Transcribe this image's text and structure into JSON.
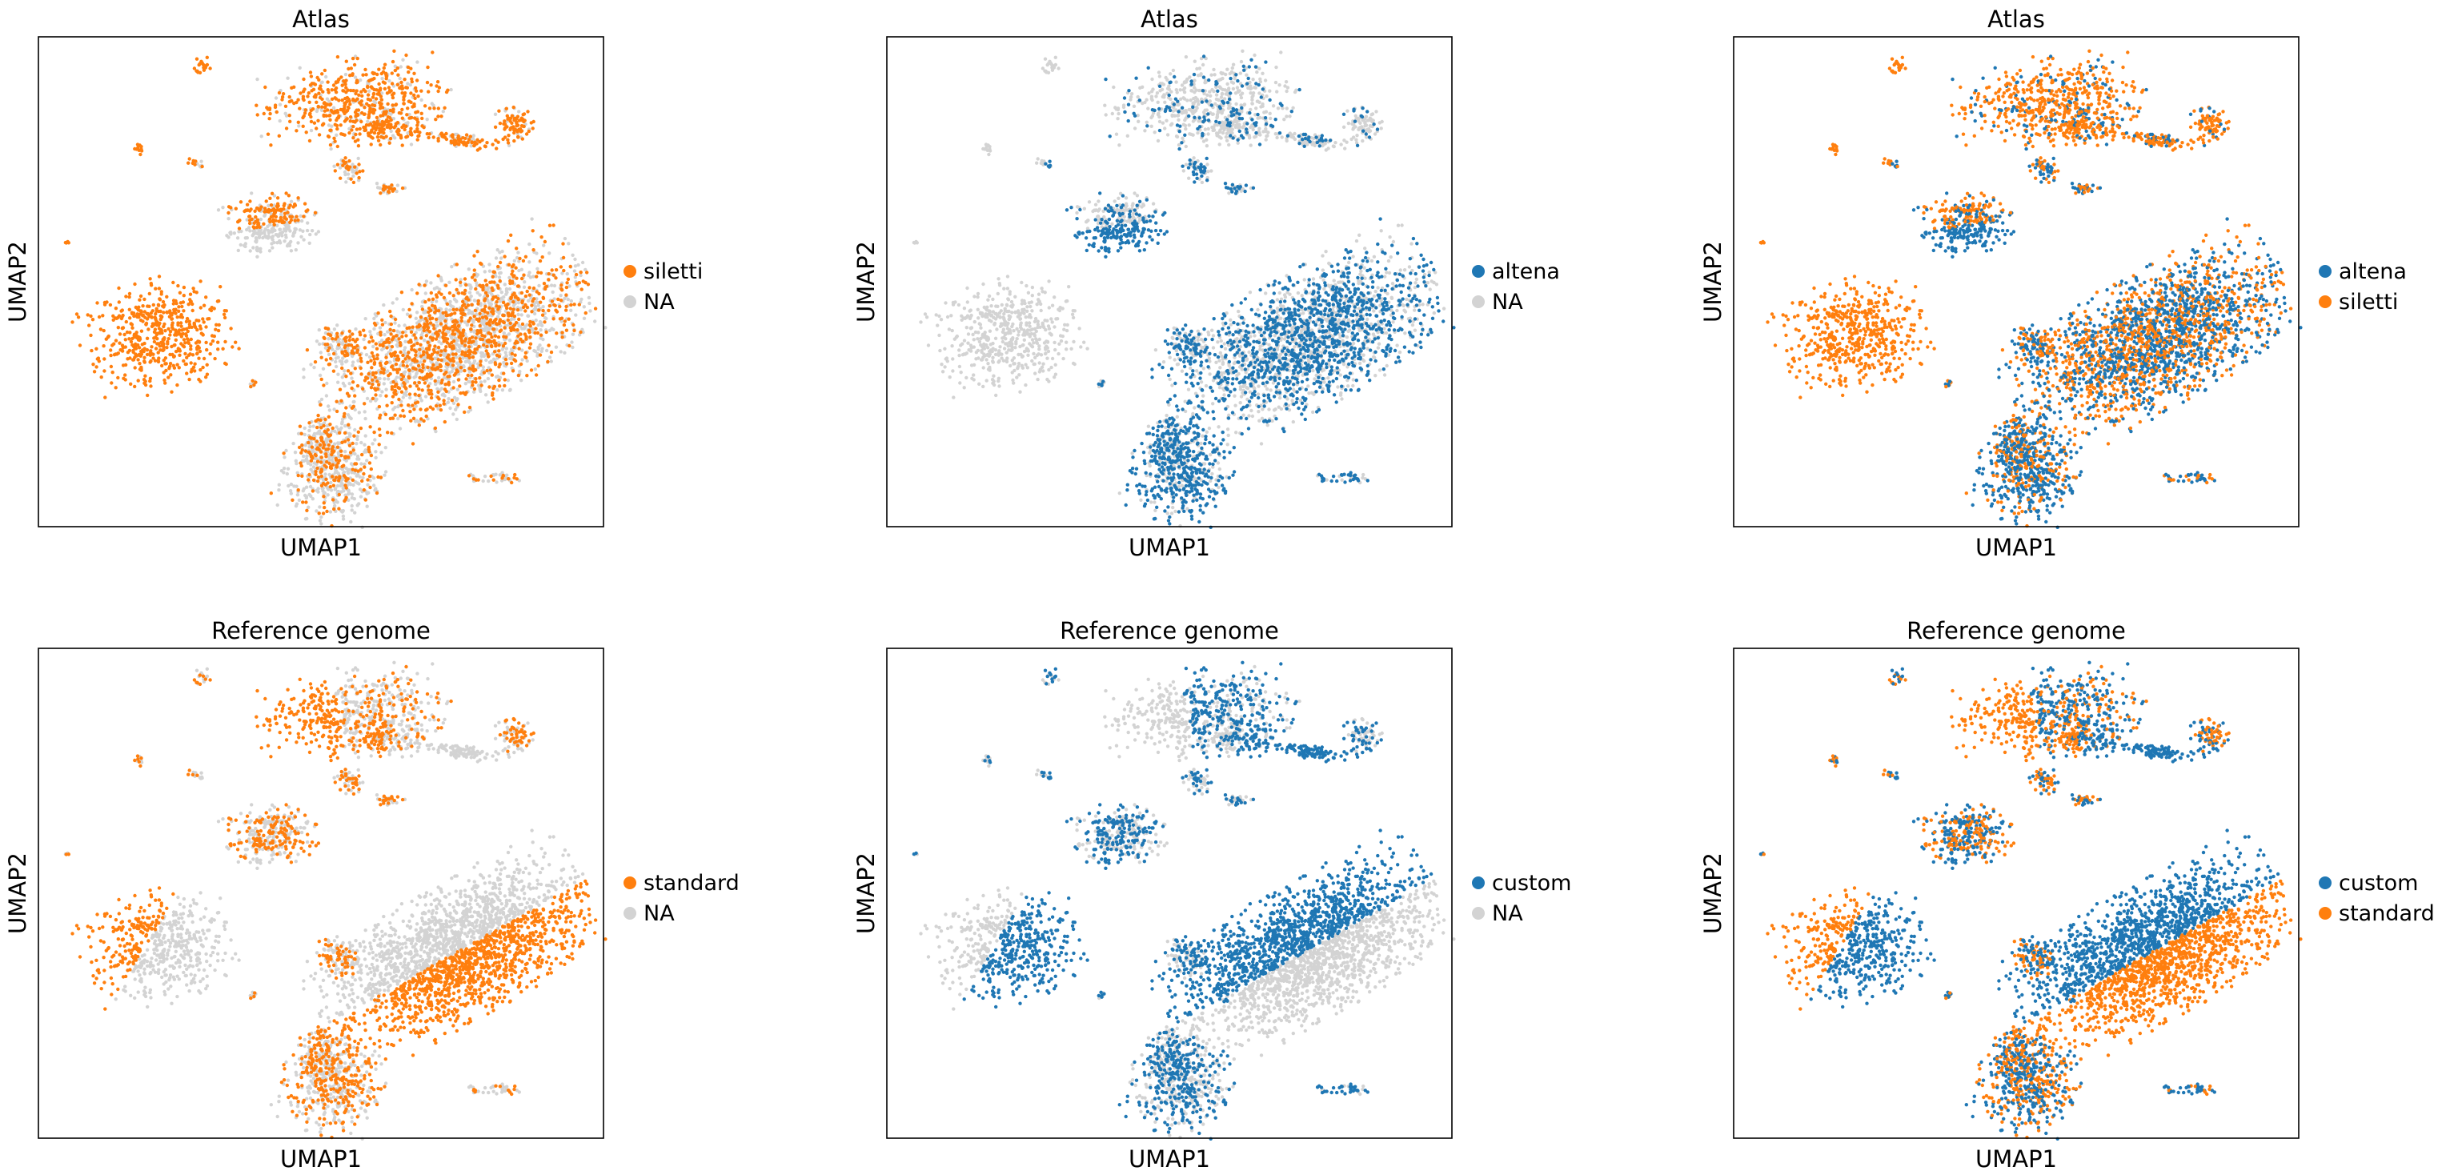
{
  "colors": {
    "blue": "#1f77b4",
    "orange": "#ff7f0e",
    "na_grey": "#d3d3d3",
    "frame": "#000000"
  },
  "chart_data": [
    {
      "type": "scatter",
      "title": "Atlas",
      "xlabel": "UMAP1",
      "ylabel": "UMAP2",
      "ticks": "none",
      "legend_position": "right",
      "legend": [
        {
          "label": "siletti",
          "color": "#ff7f0e"
        },
        {
          "label": "NA",
          "color": "#d3d3d3"
        }
      ],
      "color_rule": "siletti",
      "series": []
    },
    {
      "type": "scatter",
      "title": "Atlas",
      "xlabel": "UMAP1",
      "ylabel": "UMAP2",
      "ticks": "none",
      "legend_position": "right",
      "legend": [
        {
          "label": "altena",
          "color": "#1f77b4"
        },
        {
          "label": "NA",
          "color": "#d3d3d3"
        }
      ],
      "color_rule": "altena",
      "series": []
    },
    {
      "type": "scatter",
      "title": "Atlas",
      "xlabel": "UMAP1",
      "ylabel": "UMAP2",
      "ticks": "none",
      "legend_position": "right",
      "legend": [
        {
          "label": "altena",
          "color": "#1f77b4"
        },
        {
          "label": "siletti",
          "color": "#ff7f0e"
        }
      ],
      "color_rule": "atlas_both",
      "series": []
    },
    {
      "type": "scatter",
      "title": "Reference genome",
      "xlabel": "UMAP1",
      "ylabel": "UMAP2",
      "ticks": "none",
      "legend_position": "right",
      "legend": [
        {
          "label": "standard",
          "color": "#ff7f0e"
        },
        {
          "label": "NA",
          "color": "#d3d3d3"
        }
      ],
      "color_rule": "standard",
      "series": []
    },
    {
      "type": "scatter",
      "title": "Reference genome",
      "xlabel": "UMAP1",
      "ylabel": "UMAP2",
      "ticks": "none",
      "legend_position": "right",
      "legend": [
        {
          "label": "custom",
          "color": "#1f77b4"
        },
        {
          "label": "NA",
          "color": "#d3d3d3"
        }
      ],
      "color_rule": "custom",
      "series": []
    },
    {
      "type": "scatter",
      "title": "Reference genome",
      "xlabel": "UMAP1",
      "ylabel": "UMAP2",
      "ticks": "none",
      "legend_position": "right",
      "legend": [
        {
          "label": "custom",
          "color": "#1f77b4"
        },
        {
          "label": "standard",
          "color": "#ff7f0e"
        }
      ],
      "color_rule": "genome_both",
      "series": []
    }
  ]
}
